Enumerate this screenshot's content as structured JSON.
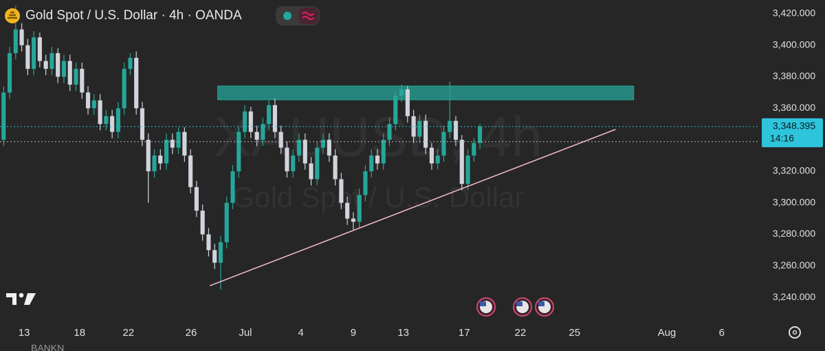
{
  "chart_data": {
    "type": "candlestick",
    "title": "Gold Spot / U.S. Dollar · 4h · OANDA",
    "watermark_symbol": "XAUUSD, 4h",
    "watermark_description": "Gold Spot / U.S. Dollar",
    "footer_partial": "BANKN",
    "up_color": "#26a69a",
    "down_color": "#d1d4dc",
    "open": [
      3340,
      3370,
      3395,
      3410,
      3400,
      3385,
      3405,
      3390,
      3385,
      3395,
      3380,
      3390,
      3375,
      3385,
      3370,
      3360,
      3365,
      3350,
      3355,
      3345,
      3360,
      3385,
      3392,
      3360,
      3340,
      3320,
      3330,
      3325,
      3340,
      3335,
      3345,
      3330,
      3310,
      3295,
      3280,
      3270,
      3262,
      3275,
      3300,
      3320,
      3345,
      3358,
      3345,
      3340,
      3350,
      3362,
      3345,
      3335,
      3320,
      3330,
      3340,
      3325,
      3315,
      3335,
      3340,
      3330,
      3315,
      3300,
      3290,
      3288,
      3305,
      3320,
      3330,
      3325,
      3340,
      3350,
      3368,
      3372,
      3355,
      3342,
      3352,
      3335,
      3325,
      3330,
      3345,
      3352,
      3340,
      3312,
      3330,
      3338
    ],
    "high": [
      3374,
      3399,
      3425,
      3414,
      3404,
      3409,
      3408,
      3394,
      3399,
      3398,
      3394,
      3394,
      3389,
      3389,
      3374,
      3369,
      3369,
      3359,
      3359,
      3364,
      3389,
      3395,
      3396,
      3364,
      3344,
      3334,
      3334,
      3344,
      3344,
      3348,
      3348,
      3334,
      3314,
      3299,
      3284,
      3274,
      3279,
      3304,
      3324,
      3348,
      3362,
      3361,
      3349,
      3354,
      3365,
      3366,
      3349,
      3339,
      3334,
      3344,
      3344,
      3329,
      3339,
      3344,
      3344,
      3334,
      3319,
      3304,
      3294,
      3309,
      3324,
      3334,
      3334,
      3344,
      3354,
      3371,
      3375,
      3374,
      3359,
      3356,
      3356,
      3338,
      3334,
      3349,
      3377,
      3355,
      3343,
      3334,
      3341,
      3350
    ],
    "low": [
      3336,
      3366,
      3391,
      3396,
      3381,
      3381,
      3386,
      3381,
      3381,
      3376,
      3376,
      3371,
      3371,
      3366,
      3356,
      3356,
      3346,
      3346,
      3341,
      3341,
      3356,
      3381,
      3356,
      3336,
      3300,
      3316,
      3321,
      3321,
      3331,
      3331,
      3326,
      3306,
      3291,
      3276,
      3266,
      3258,
      3245,
      3271,
      3296,
      3316,
      3341,
      3341,
      3336,
      3336,
      3346,
      3341,
      3331,
      3316,
      3316,
      3326,
      3321,
      3311,
      3311,
      3331,
      3326,
      3311,
      3296,
      3286,
      3283,
      3284,
      3301,
      3316,
      3321,
      3321,
      3336,
      3346,
      3364,
      3351,
      3338,
      3338,
      3331,
      3321,
      3321,
      3326,
      3341,
      3336,
      3308,
      3308,
      3326,
      3334
    ],
    "close": [
      3370,
      3395,
      3410,
      3400,
      3385,
      3405,
      3390,
      3385,
      3395,
      3380,
      3390,
      3375,
      3385,
      3370,
      3360,
      3365,
      3350,
      3355,
      3345,
      3360,
      3385,
      3392,
      3360,
      3340,
      3320,
      3330,
      3325,
      3340,
      3335,
      3345,
      3330,
      3310,
      3295,
      3280,
      3270,
      3262,
      3275,
      3300,
      3320,
      3345,
      3358,
      3345,
      3340,
      3350,
      3362,
      3345,
      3335,
      3320,
      3330,
      3340,
      3325,
      3315,
      3335,
      3340,
      3330,
      3315,
      3300,
      3290,
      3288,
      3305,
      3320,
      3330,
      3325,
      3340,
      3350,
      3368,
      3372,
      3355,
      3342,
      3352,
      3335,
      3325,
      3330,
      3345,
      3352,
      3340,
      3312,
      3330,
      3338,
      3348.395
    ],
    "xlim": [
      -0.6,
      125.4
    ],
    "xticks": [
      {
        "value": 3.4,
        "label": "13"
      },
      {
        "value": 12.6,
        "label": "18"
      },
      {
        "value": 20.7,
        "label": "22"
      },
      {
        "value": 31.1,
        "label": "26"
      },
      {
        "value": 40.1,
        "label": "Jul"
      },
      {
        "value": 49.3,
        "label": "4"
      },
      {
        "value": 58,
        "label": "9"
      },
      {
        "value": 66.3,
        "label": "13"
      },
      {
        "value": 76.4,
        "label": "17"
      },
      {
        "value": 85.7,
        "label": "22"
      },
      {
        "value": 94.7,
        "label": "25"
      },
      {
        "value": 110,
        "label": "Aug"
      },
      {
        "value": 119.1,
        "label": "6"
      }
    ],
    "ylim": [
      3225.2,
      3428.7
    ],
    "yticks": [
      {
        "value": 3420,
        "label": "3,420.000"
      },
      {
        "value": 3400,
        "label": "3,400.000"
      },
      {
        "value": 3380,
        "label": "3,380.000"
      },
      {
        "value": 3360,
        "label": "3,360.000"
      },
      {
        "value": 3320,
        "label": "3,320.000"
      },
      {
        "value": 3300,
        "label": "3,300.000"
      },
      {
        "value": 3280,
        "label": "3,280.000"
      },
      {
        "value": 3260,
        "label": "3,260.000"
      },
      {
        "value": 3240,
        "label": "3,240.000"
      }
    ],
    "current_price": {
      "value": 3348.395,
      "label": "3,348.395",
      "countdown": "14:16",
      "color": "#2ec4dc"
    },
    "reference_line": 3338.8,
    "zone": {
      "x": [
        35.5,
        104.5
      ],
      "y": [
        3365.4,
        3374.1
      ],
      "color": "#26a69a"
    },
    "trendline": {
      "x": [
        34.2,
        101.5
      ],
      "y": [
        3247.4,
        3346.6
      ],
      "color": "#f8bbd0"
    }
  }
}
